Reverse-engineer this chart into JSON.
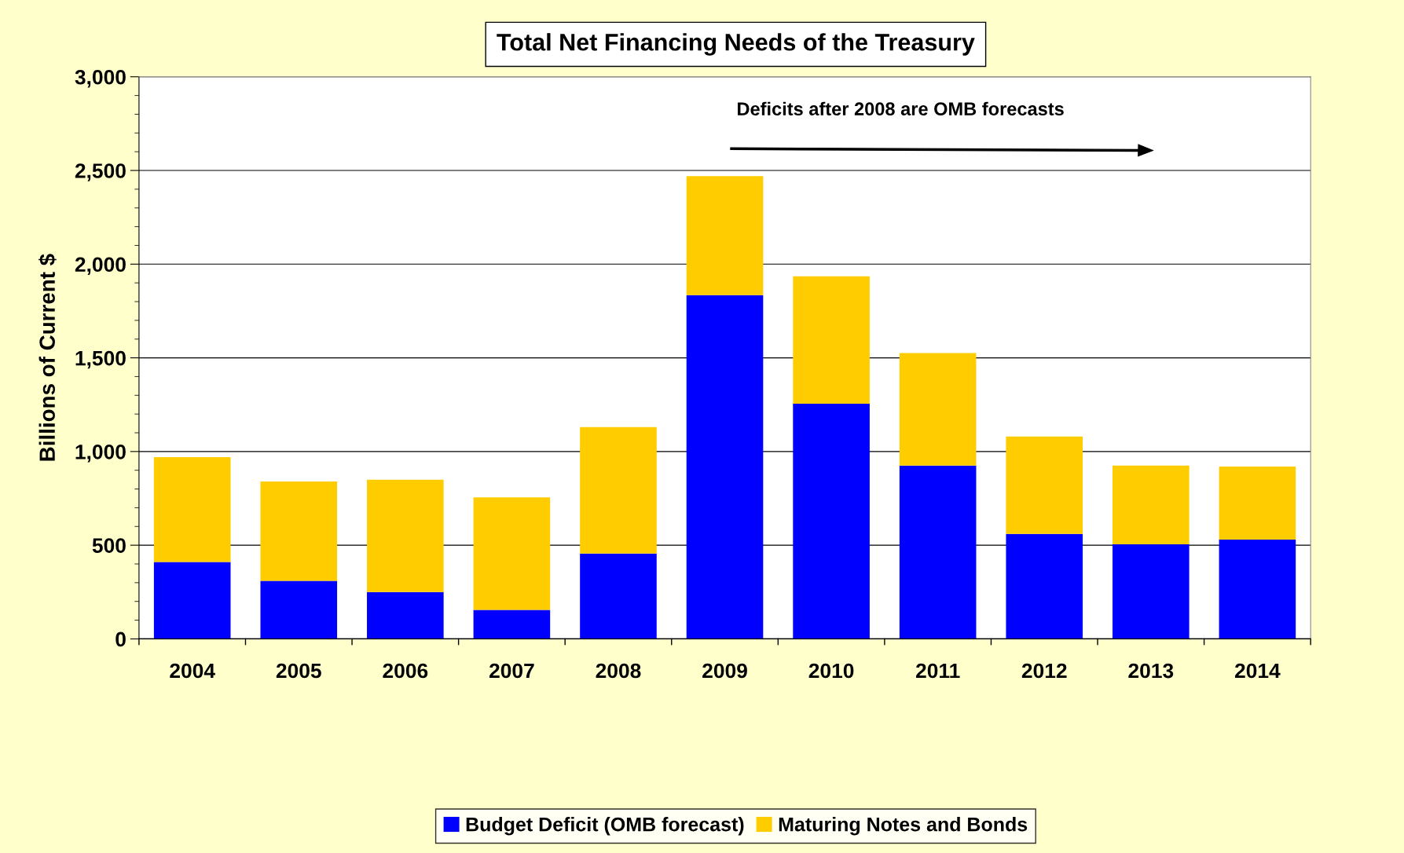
{
  "chart_data": {
    "type": "bar",
    "title": "Total Net Financing Needs of the Treasury",
    "ylabel": "Billions of Current $",
    "categories": [
      "2004",
      "2005",
      "2006",
      "2007",
      "2008",
      "2009",
      "2010",
      "2011",
      "2012",
      "2013",
      "2014"
    ],
    "series": [
      {
        "name": "Budget Deficit (OMB forecast)",
        "color": "#0000ff",
        "values": [
          410,
          310,
          250,
          155,
          455,
          1835,
          1255,
          925,
          560,
          505,
          530
        ]
      },
      {
        "name": "Maturing Notes and Bonds",
        "color": "#ffcc00",
        "values": [
          560,
          530,
          600,
          600,
          675,
          635,
          680,
          600,
          520,
          420,
          390
        ]
      }
    ],
    "stacked": true,
    "ylim": [
      0,
      3000
    ],
    "yticks": [
      {
        "value": 0,
        "label": "0"
      },
      {
        "value": 500,
        "label": "500"
      },
      {
        "value": 1000,
        "label": "1,000"
      },
      {
        "value": 1500,
        "label": "1,500"
      },
      {
        "value": 2000,
        "label": "2,000"
      },
      {
        "value": 2500,
        "label": "2,500"
      },
      {
        "value": 3000,
        "label": "3,000"
      }
    ],
    "grid": "y",
    "legend": "bottom",
    "annotations": [
      "Deficits after 2008 are OMB forecasts"
    ]
  }
}
